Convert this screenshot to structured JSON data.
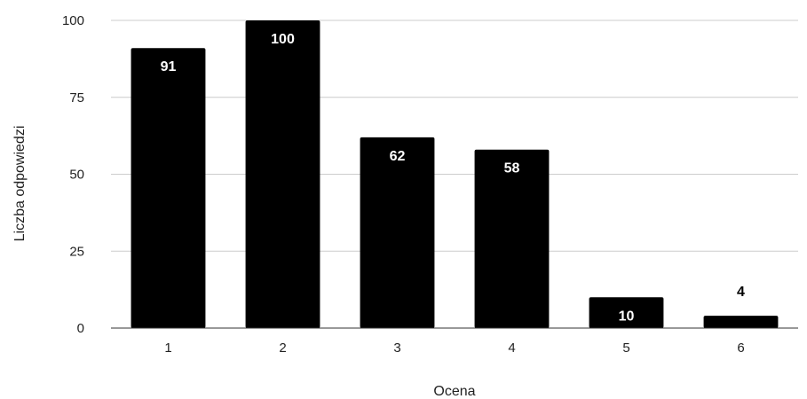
{
  "chart_data": {
    "type": "bar",
    "title": "",
    "xlabel": "Ocena",
    "ylabel": "Liczba odpowiedzi",
    "categories": [
      "1",
      "2",
      "3",
      "4",
      "5",
      "6"
    ],
    "values": [
      91,
      100,
      62,
      58,
      10,
      4
    ],
    "data_labels": [
      "91",
      "100",
      "62",
      "58",
      "10",
      "4"
    ],
    "ylim": [
      0,
      100
    ],
    "yticks": [
      0,
      25,
      50,
      75,
      100
    ],
    "ytick_labels": [
      "0",
      "25",
      "50",
      "75",
      "100"
    ],
    "grid": true,
    "legend": "none",
    "colors": {
      "bar": "#000000",
      "label_inside": "#ffffff",
      "label_outside": "#000000",
      "grid": "#cccccc",
      "axis": "#333333",
      "text": "#222222"
    }
  }
}
